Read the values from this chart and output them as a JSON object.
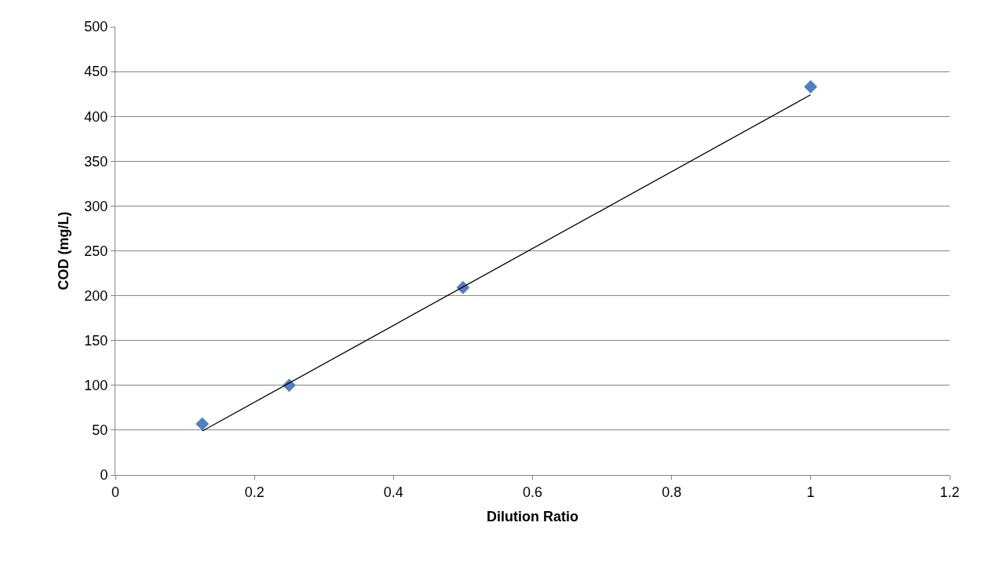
{
  "chart_data": {
    "type": "scatter",
    "xlabel": "Dilution Ratio",
    "ylabel": "COD (mg/L)",
    "x": [
      0.125,
      0.25,
      0.5,
      1
    ],
    "series": [
      {
        "color": "#4f81bd",
        "marker": "diamond",
        "values": [
          57,
          100,
          209,
          433
        ]
      },
      {
        "type": "line",
        "color": "#000000",
        "marker": "none",
        "x": [
          0.125,
          1
        ],
        "values": [
          49,
          424
        ]
      }
    ],
    "xlim": [
      0,
      1.2
    ],
    "xticks": [
      0,
      0.2,
      0.4,
      0.6,
      0.8,
      1,
      1.2
    ],
    "ylim": [
      0,
      500
    ],
    "yticks": [
      0,
      50,
      100,
      150,
      200,
      250,
      300,
      350,
      400,
      450,
      500
    ],
    "grid": "y"
  }
}
